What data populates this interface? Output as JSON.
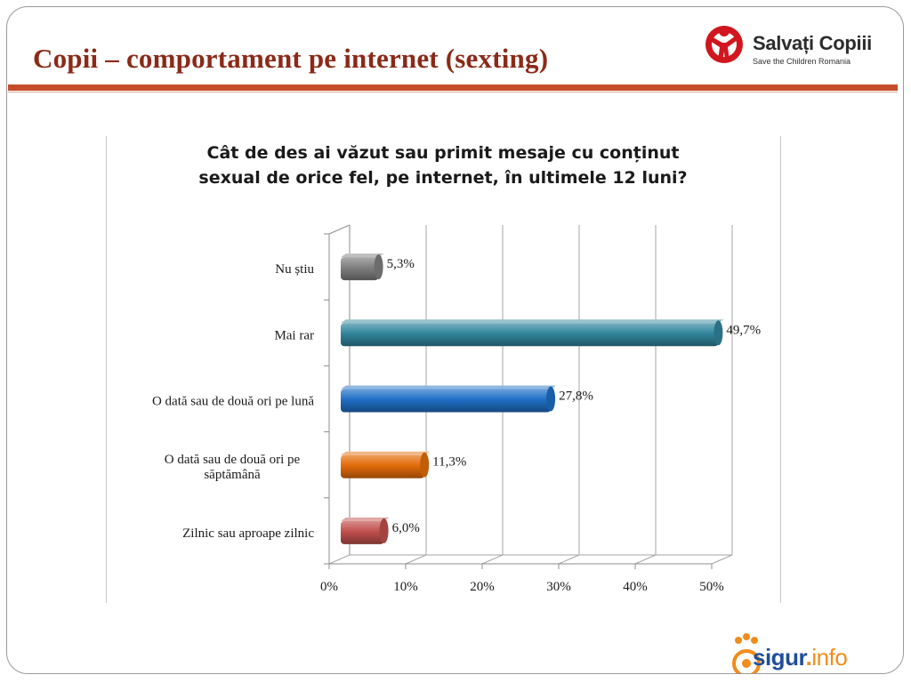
{
  "slide": {
    "title": "Copii – comportament pe internet (sexting)"
  },
  "brand": {
    "name": "Salvați Copiii",
    "tagline": "Save the Children Romania",
    "footer_name": "sigur",
    "footer_tld": "info",
    "accent": "#c64d2b",
    "title_color": "#8b2a18"
  },
  "chart_data": {
    "type": "bar",
    "orientation": "horizontal",
    "title_lines": [
      "Cât de des ai văzut sau primit mesaje cu conținut",
      "sexual de orice fel, pe internet, în ultimele 12 luni?"
    ],
    "categories": [
      [
        "Nu știu"
      ],
      [
        "Mai rar"
      ],
      [
        "O dată sau de două ori pe lună"
      ],
      [
        "O dată sau de două ori pe",
        "săptămână"
      ],
      [
        "Zilnic sau aproape zilnic"
      ]
    ],
    "values": [
      5.3,
      49.7,
      27.8,
      11.3,
      6.0
    ],
    "data_labels": [
      "5,3%",
      "49,7%",
      "27,8%",
      "11,3%",
      "6,0%"
    ],
    "colors": [
      "#7f7f7f",
      "#31859c",
      "#1f6fc5",
      "#e36c09",
      "#c0504d"
    ],
    "xlim": [
      0,
      50
    ],
    "xticks": [
      0,
      10,
      20,
      30,
      40,
      50
    ],
    "xtick_labels": [
      "0%",
      "10%",
      "20%",
      "30%",
      "40%",
      "50%"
    ],
    "grid": true,
    "style": "3d-cylinder"
  }
}
